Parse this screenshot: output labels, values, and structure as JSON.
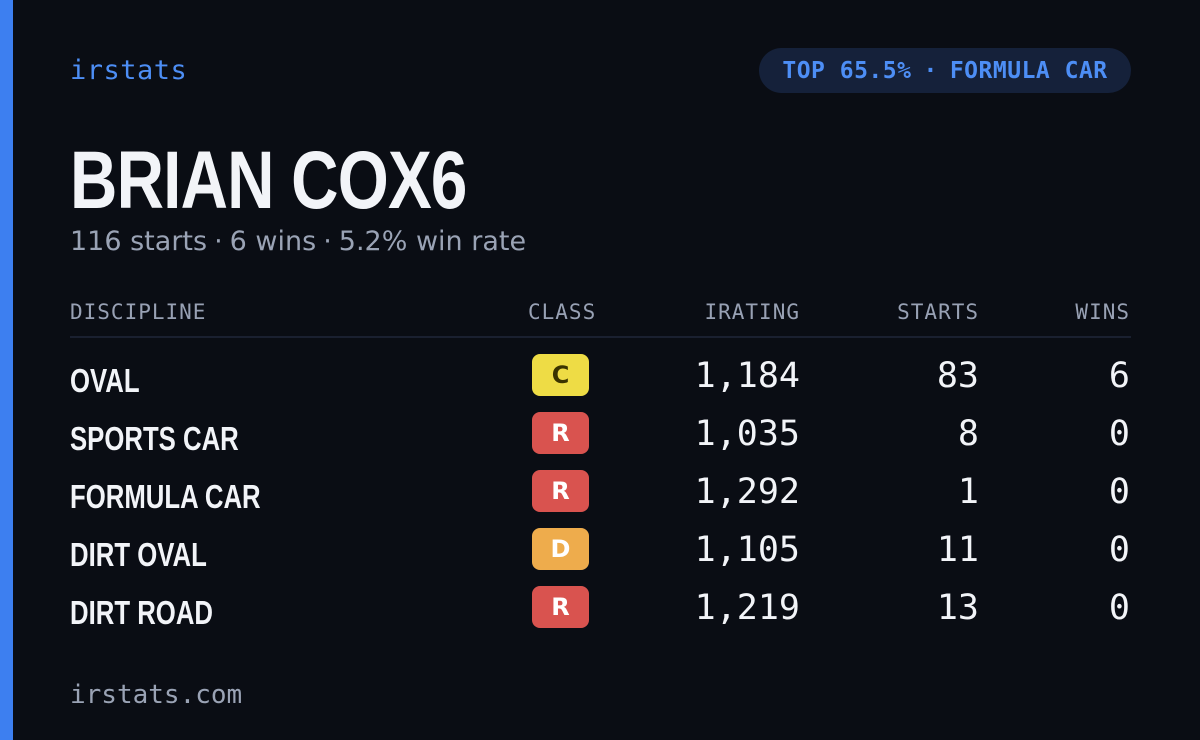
{
  "brand": "irstats",
  "badge": {
    "rank": "TOP 65.5%",
    "separator": "·",
    "discipline": "FORMULA CAR"
  },
  "driver": {
    "name": "BRIAN COX6"
  },
  "summary": {
    "starts": "116 starts",
    "wins": "6 wins",
    "win_rate": "5.2% win rate",
    "separator": "·"
  },
  "table": {
    "headers": {
      "discipline": "DISCIPLINE",
      "class": "CLASS",
      "irating": "IRATING",
      "starts": "STARTS",
      "wins": "WINS"
    },
    "rows": [
      {
        "discipline": "OVAL",
        "class": "C",
        "class_color": "#eedc45",
        "class_text_color": "#3a3300",
        "irating": "1,184",
        "starts": "83",
        "wins": "6"
      },
      {
        "discipline": "SPORTS CAR",
        "class": "R",
        "class_color": "#d9534f",
        "class_text_color": "#ffffff",
        "irating": "1,035",
        "starts": "8",
        "wins": "0"
      },
      {
        "discipline": "FORMULA CAR",
        "class": "R",
        "class_color": "#d9534f",
        "class_text_color": "#ffffff",
        "irating": "1,292",
        "starts": "1",
        "wins": "0"
      },
      {
        "discipline": "DIRT OVAL",
        "class": "D",
        "class_color": "#eeac4c",
        "class_text_color": "#ffffff",
        "irating": "1,105",
        "starts": "11",
        "wins": "0"
      },
      {
        "discipline": "DIRT ROAD",
        "class": "R",
        "class_color": "#d9534f",
        "class_text_color": "#ffffff",
        "irating": "1,219",
        "starts": "13",
        "wins": "0"
      }
    ]
  },
  "footer": "irstats.com",
  "colors": {
    "accent": "#3d7ff0",
    "background": "#0a0d14"
  }
}
